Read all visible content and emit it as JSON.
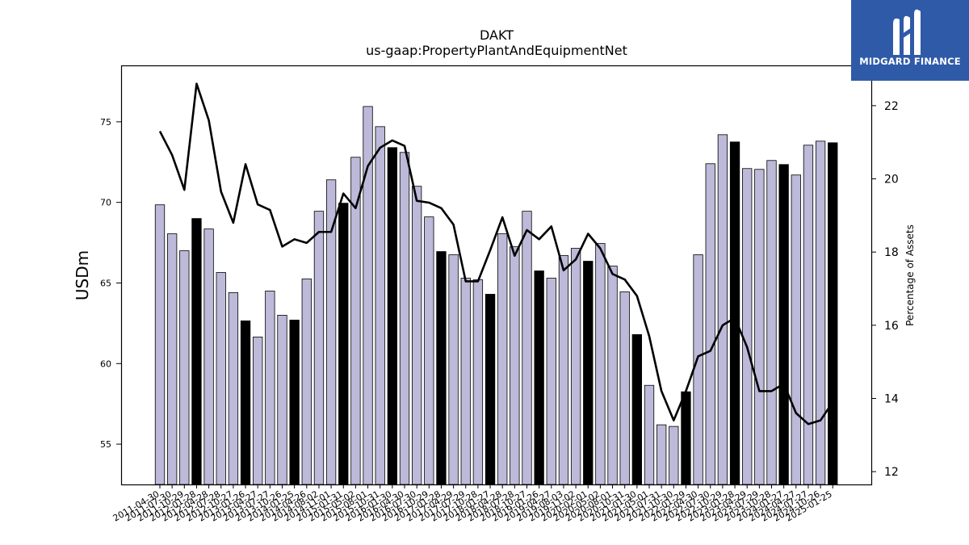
{
  "chart_data": {
    "type": "bar",
    "title": "DAKT",
    "subtitle": "us-gaap:PropertyPlantAndEquipmentNet",
    "ylabel": "USDm",
    "y2label": "Percentage of Assets",
    "ylim": [
      52.5,
      78.5
    ],
    "y2lim": [
      11.65,
      23.1
    ],
    "yticks": [
      55,
      60,
      65,
      70,
      75
    ],
    "y2ticks": [
      12,
      14,
      16,
      18,
      20,
      22
    ],
    "categories": [
      "2011-04-30",
      "2011-07-30",
      "2011-10-29",
      "2012-01-28",
      "2012-04-28",
      "2012-07-28",
      "2012-10-27",
      "2013-01-26",
      "2013-04-27",
      "2013-07-27",
      "2013-10-26",
      "2014-01-25",
      "2014-04-26",
      "2014-08-02",
      "2014-11-01",
      "2015-01-31",
      "2015-05-02",
      "2015-08-01",
      "2015-10-31",
      "2016-01-30",
      "2016-04-30",
      "2016-07-30",
      "2016-10-29",
      "2017-01-28",
      "2017-04-29",
      "2017-07-29",
      "2017-10-28",
      "2018-01-27",
      "2018-04-28",
      "2018-07-28",
      "2018-10-27",
      "2019-01-26",
      "2019-04-27",
      "2019-08-03",
      "2019-11-02",
      "2020-02-01",
      "2020-05-02",
      "2020-08-01",
      "2020-10-31",
      "2021-01-30",
      "2021-05-01",
      "2021-07-31",
      "2021-10-30",
      "2022-01-29",
      "2022-04-30",
      "2022-07-30",
      "2022-10-29",
      "2023-01-28",
      "2023-04-29",
      "2023-07-29",
      "2023-10-28",
      "2024-01-27",
      "2024-04-27",
      "2024-07-27",
      "2024-10-26",
      "2025-01-25"
    ],
    "xtick_labels": [
      "2011-04-30",
      "2011-07-30",
      "2011-10-29",
      "2012-01-28",
      "2012-04-28",
      "2012-07-28",
      "2012-10-27",
      "2013-01-26",
      "2013-04-27",
      "2013-07-27",
      "2013-10-26",
      "2014-01-25",
      "2014-04-26",
      "2014-08-02",
      "2014-11-01",
      "2015-01-31",
      "2015-05-02",
      "2015-08-01",
      "2015-10-31",
      "2016-01-30",
      "2016-04-30",
      "2016-07-30",
      "2016-10-29",
      "2017-01-28",
      "2017-04-29",
      "2017-07-29",
      "2017-10-28",
      "2018-01-27",
      "2018-04-28",
      "2018-07-28",
      "2018-10-27",
      "2019-01-26",
      "2019-04-27",
      "2019-08-03",
      "2019-11-02",
      "2020-02-01",
      "2020-05-02",
      "2020-08-01",
      "2020-10-31",
      "2021-01-30",
      "2021-05-01",
      "2021-07-31",
      "2021-10-30",
      "2022-01-29",
      "2022-04-30",
      "2022-07-30",
      "2022-10-29",
      "2023-01-28",
      "2023-04-29",
      "2023-07-29",
      "2023-10-28",
      "2024-01-27",
      "2024-04-27",
      "2024-07-27",
      "2024-10-26",
      "2025-01-25"
    ],
    "series": [
      {
        "kind": "bar",
        "axis": "left",
        "values": [
          69.85,
          68.05,
          67.0,
          69.0,
          68.35,
          65.65,
          64.4,
          62.65,
          61.65,
          64.5,
          63.0,
          62.7,
          65.25,
          69.45,
          71.4,
          69.95,
          72.8,
          75.95,
          74.7,
          73.4,
          73.1,
          71.0,
          69.1,
          66.95,
          66.75,
          65.3,
          65.2,
          64.3,
          68.05,
          67.25,
          69.45,
          65.75,
          65.3,
          66.7,
          67.15,
          66.35,
          67.45,
          66.05,
          64.45,
          61.8,
          58.65,
          56.2,
          56.1,
          58.25,
          66.75,
          72.4,
          74.2,
          73.75,
          72.1,
          72.05,
          72.6,
          72.35,
          71.7,
          73.55,
          73.8,
          73.7
        ]
      },
      {
        "kind": "line",
        "axis": "right",
        "values": [
          21.3,
          20.65,
          19.7,
          22.6,
          21.6,
          19.65,
          18.8,
          20.4,
          19.3,
          19.15,
          18.15,
          18.35,
          18.25,
          18.55,
          18.55,
          19.6,
          19.2,
          20.35,
          20.85,
          21.05,
          20.9,
          19.4,
          19.35,
          19.2,
          18.75,
          17.2,
          17.2,
          18.05,
          18.95,
          17.9,
          18.6,
          18.35,
          18.7,
          17.5,
          17.8,
          18.5,
          18.1,
          17.4,
          17.25,
          16.8,
          15.7,
          14.2,
          13.4,
          14.2,
          15.15,
          15.3,
          16.0,
          16.2,
          15.4,
          14.2,
          14.2,
          14.4,
          13.6,
          13.3,
          13.4,
          13.9
        ]
      }
    ],
    "highlight_bar_indices": [
      3,
      7,
      11,
      15,
      19,
      23,
      27,
      31,
      35,
      39,
      43,
      47,
      51,
      55
    ],
    "colors": {
      "bar_fill": "#bdb9d9",
      "bar_highlight_fill": "#000000",
      "bar_edge": "#000000",
      "line": "#000000"
    },
    "grid": false,
    "legend": "none"
  },
  "logo": {
    "text": "MIDGARD FINANCE",
    "background": "#2f5aa8",
    "icon": "midgard-m-logo-icon"
  }
}
